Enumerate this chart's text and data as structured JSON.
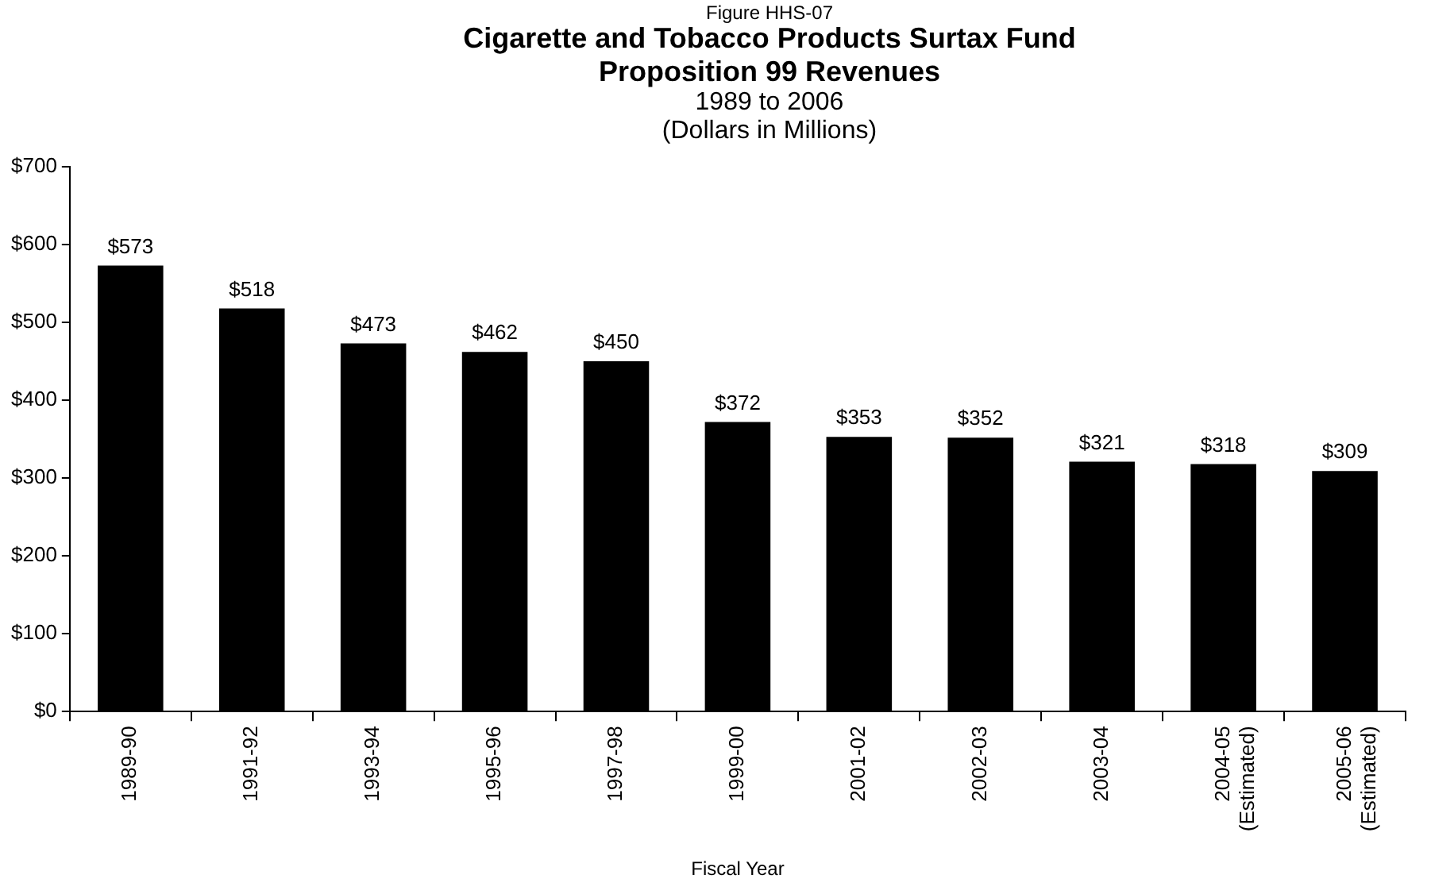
{
  "chart_data": {
    "type": "bar",
    "title": "Cigarette and Tobacco Products Surtax Fund\nProposition 99 Revenues",
    "subtitle": "1989 to 2006\n(Dollars in Millions)",
    "annotations": [
      "Figure HHS-07"
    ],
    "xlabel": "Fiscal Year",
    "categories": [
      "1989-90",
      "1991-92",
      "1993-94",
      "1995-96",
      "1997-98",
      "1999-00",
      "2001-02",
      "2002-03",
      "2003-04",
      "2004-05\n(Estimated)",
      "2005-06\n(Estimated)"
    ],
    "values": [
      573,
      518,
      473,
      462,
      450,
      372,
      353,
      352,
      321,
      318,
      309
    ],
    "value_labels": [
      "$573",
      "$518",
      "$473",
      "$462",
      "$450",
      "$372",
      "$353",
      "$352",
      "$321",
      "$318",
      "$309"
    ],
    "color": "#000000",
    "ylim": [
      0,
      700
    ],
    "yticks": [
      {
        "value": 0,
        "label": "$0"
      },
      {
        "value": 100,
        "label": "$100"
      },
      {
        "value": 200,
        "label": "$200"
      },
      {
        "value": 300,
        "label": "$300"
      },
      {
        "value": 400,
        "label": "$400"
      },
      {
        "value": 500,
        "label": "$500"
      },
      {
        "value": 600,
        "label": "$600"
      },
      {
        "value": 700,
        "label": "$700"
      }
    ],
    "grid": false,
    "legend": false
  }
}
